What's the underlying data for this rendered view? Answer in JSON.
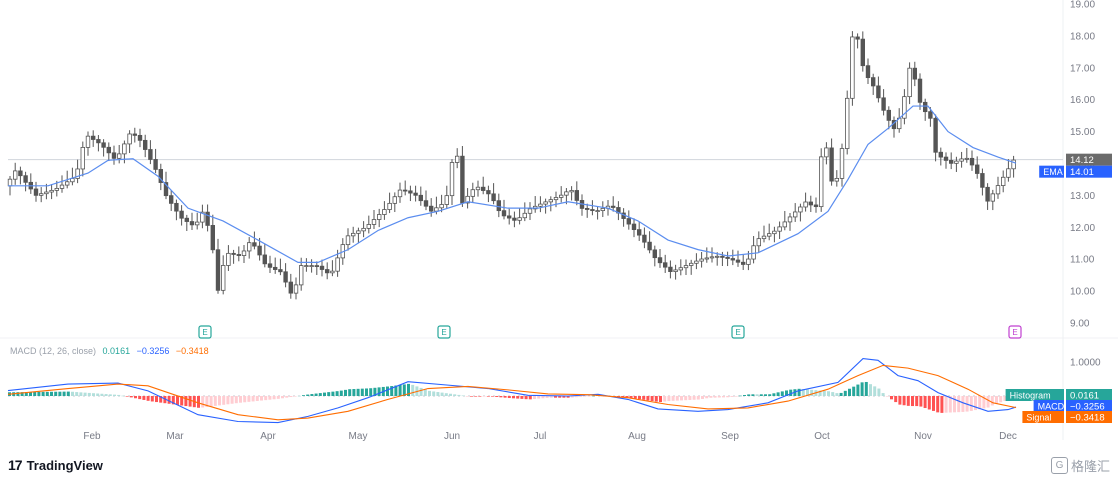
{
  "macd_header": {
    "title": "MACD (12, 26, close)",
    "histogram": "0.0161",
    "macd": "−0.3256",
    "signal": "−0.3418"
  },
  "branding": {
    "logo_mark": "17",
    "logo_text": "TradingView",
    "watermark_glyph": "G",
    "watermark_text": "格隆汇"
  },
  "chart_data": {
    "type": "candlestick",
    "price_axis": {
      "min": 9.0,
      "max": 19.0,
      "ticks": [
        "19.00",
        "18.00",
        "17.00",
        "16.00",
        "15.00",
        "14.00",
        "13.00",
        "12.00",
        "11.00",
        "10.00",
        "9.00"
      ]
    },
    "month_labels": [
      "Feb",
      "Mar",
      "Apr",
      "May",
      "Jun",
      "Jul",
      "Aug",
      "Sep",
      "Oct",
      "Nov",
      "Dec"
    ],
    "last_price": {
      "label": "14.12",
      "value": 14.12
    },
    "ema_label": {
      "name": "EMA",
      "value": "14.01"
    },
    "earnings_markers": [
      "E",
      "E",
      "E",
      "E"
    ],
    "colors": {
      "up": "#ffffff",
      "down": "#555555",
      "wick": "#555555",
      "ema": "#5b8def",
      "price_tag": "#6b6b6b",
      "ema_tag": "#2962ff",
      "macd": "#2962ff",
      "signal": "#ff6d00",
      "hist_pos_strong": "#26a69a",
      "hist_pos_weak": "#b2dfdb",
      "hist_neg_strong": "#ff5252",
      "hist_neg_weak": "#ffcdd2",
      "earnings_past": "#26a69a",
      "earnings_next": "#c040d0"
    },
    "macd_axis_tick": "1.0000",
    "macd_tags": {
      "histogram_label": "Histogram",
      "histogram_value": "0.0161",
      "macd_label": "MACD",
      "macd_value": "−0.3256",
      "signal_label": "Signal",
      "signal_value": "−0.3418"
    },
    "price_path": [
      [
        0,
        13.3
      ],
      [
        10,
        13.8
      ],
      [
        30,
        13.0
      ],
      [
        50,
        13.2
      ],
      [
        70,
        13.6
      ],
      [
        80,
        14.9
      ],
      [
        95,
        14.6
      ],
      [
        110,
        14.1
      ],
      [
        125,
        15.0
      ],
      [
        135,
        14.7
      ],
      [
        150,
        13.8
      ],
      [
        160,
        13.0
      ],
      [
        175,
        12.3
      ],
      [
        190,
        12.0
      ],
      [
        195,
        12.6
      ],
      [
        205,
        11.8
      ],
      [
        212,
        10.0
      ],
      [
        220,
        11.2
      ],
      [
        235,
        11.1
      ],
      [
        245,
        11.6
      ],
      [
        260,
        10.8
      ],
      [
        275,
        10.6
      ],
      [
        287,
        9.8
      ],
      [
        295,
        10.8
      ],
      [
        310,
        10.8
      ],
      [
        325,
        10.5
      ],
      [
        340,
        11.7
      ],
      [
        360,
        12.0
      ],
      [
        380,
        12.6
      ],
      [
        395,
        13.2
      ],
      [
        410,
        13.0
      ],
      [
        425,
        12.5
      ],
      [
        440,
        12.8
      ],
      [
        450,
        14.8
      ],
      [
        455,
        12.7
      ],
      [
        470,
        13.3
      ],
      [
        485,
        13.0
      ],
      [
        495,
        12.4
      ],
      [
        510,
        12.2
      ],
      [
        525,
        12.6
      ],
      [
        540,
        12.8
      ],
      [
        555,
        13.0
      ],
      [
        565,
        13.2
      ],
      [
        575,
        12.6
      ],
      [
        590,
        12.5
      ],
      [
        605,
        12.7
      ],
      [
        620,
        12.2
      ],
      [
        635,
        11.7
      ],
      [
        650,
        11.0
      ],
      [
        665,
        10.6
      ],
      [
        680,
        10.8
      ],
      [
        695,
        11.0
      ],
      [
        710,
        11.1
      ],
      [
        725,
        11.0
      ],
      [
        740,
        10.8
      ],
      [
        750,
        11.6
      ],
      [
        770,
        11.9
      ],
      [
        790,
        12.5
      ],
      [
        800,
        12.8
      ],
      [
        810,
        12.6
      ],
      [
        818,
        15.0
      ],
      [
        828,
        13.0
      ],
      [
        838,
        14.8
      ],
      [
        848,
        18.5
      ],
      [
        858,
        16.9
      ],
      [
        868,
        16.4
      ],
      [
        880,
        15.5
      ],
      [
        890,
        15.0
      ],
      [
        898,
        16.0
      ],
      [
        905,
        17.2
      ],
      [
        915,
        15.8
      ],
      [
        925,
        15.4
      ],
      [
        930,
        14.3
      ],
      [
        945,
        14.0
      ],
      [
        960,
        14.2
      ],
      [
        970,
        13.8
      ],
      [
        982,
        12.8
      ],
      [
        990,
        13.2
      ],
      [
        1000,
        13.7
      ],
      [
        1008,
        14.12
      ]
    ],
    "ema_path": [
      [
        0,
        13.3
      ],
      [
        40,
        13.3
      ],
      [
        80,
        13.7
      ],
      [
        100,
        14.1
      ],
      [
        125,
        14.15
      ],
      [
        150,
        13.6
      ],
      [
        180,
        12.6
      ],
      [
        215,
        12.2
      ],
      [
        250,
        11.6
      ],
      [
        290,
        10.9
      ],
      [
        310,
        10.9
      ],
      [
        340,
        11.3
      ],
      [
        370,
        11.9
      ],
      [
        400,
        12.3
      ],
      [
        430,
        12.5
      ],
      [
        460,
        12.8
      ],
      [
        500,
        12.6
      ],
      [
        530,
        12.6
      ],
      [
        560,
        12.8
      ],
      [
        600,
        12.6
      ],
      [
        630,
        12.2
      ],
      [
        660,
        11.6
      ],
      [
        690,
        11.3
      ],
      [
        720,
        11.1
      ],
      [
        750,
        11.2
      ],
      [
        790,
        11.8
      ],
      [
        820,
        12.5
      ],
      [
        840,
        13.5
      ],
      [
        860,
        14.6
      ],
      [
        880,
        15.1
      ],
      [
        905,
        15.8
      ],
      [
        920,
        15.8
      ],
      [
        940,
        15.0
      ],
      [
        965,
        14.5
      ],
      [
        990,
        14.2
      ],
      [
        1008,
        14.01
      ]
    ],
    "macd_path": [
      [
        0,
        0.16
      ],
      [
        60,
        0.35
      ],
      [
        110,
        0.38
      ],
      [
        140,
        0.15
      ],
      [
        190,
        -0.55
      ],
      [
        230,
        -0.75
      ],
      [
        270,
        -0.78
      ],
      [
        300,
        -0.6
      ],
      [
        330,
        -0.35
      ],
      [
        360,
        -0.05
      ],
      [
        400,
        0.42
      ],
      [
        440,
        0.32
      ],
      [
        480,
        0.22
      ],
      [
        520,
        0.02
      ],
      [
        560,
        0.0
      ],
      [
        590,
        0.05
      ],
      [
        620,
        -0.1
      ],
      [
        650,
        -0.38
      ],
      [
        690,
        -0.45
      ],
      [
        720,
        -0.4
      ],
      [
        760,
        -0.2
      ],
      [
        790,
        0.15
      ],
      [
        830,
        0.4
      ],
      [
        855,
        1.1
      ],
      [
        870,
        1.05
      ],
      [
        890,
        0.6
      ],
      [
        910,
        0.45
      ],
      [
        930,
        0.1
      ],
      [
        955,
        -0.2
      ],
      [
        980,
        -0.45
      ],
      [
        1000,
        -0.4
      ],
      [
        1008,
        -0.3256
      ]
    ],
    "signal_path": [
      [
        0,
        0.05
      ],
      [
        60,
        0.22
      ],
      [
        110,
        0.35
      ],
      [
        140,
        0.3
      ],
      [
        190,
        -0.2
      ],
      [
        230,
        -0.55
      ],
      [
        270,
        -0.7
      ],
      [
        300,
        -0.65
      ],
      [
        340,
        -0.45
      ],
      [
        380,
        -0.1
      ],
      [
        420,
        0.22
      ],
      [
        460,
        0.28
      ],
      [
        500,
        0.18
      ],
      [
        540,
        0.06
      ],
      [
        580,
        0.04
      ],
      [
        620,
        -0.05
      ],
      [
        660,
        -0.25
      ],
      [
        700,
        -0.38
      ],
      [
        740,
        -0.35
      ],
      [
        780,
        -0.15
      ],
      [
        820,
        0.2
      ],
      [
        850,
        0.6
      ],
      [
        875,
        0.9
      ],
      [
        900,
        0.82
      ],
      [
        930,
        0.6
      ],
      [
        960,
        0.2
      ],
      [
        985,
        -0.2
      ],
      [
        1008,
        -0.3418
      ]
    ]
  }
}
